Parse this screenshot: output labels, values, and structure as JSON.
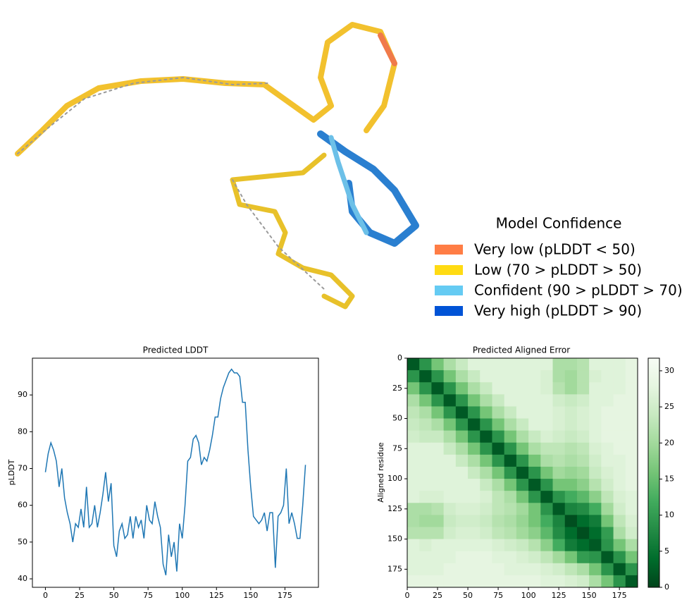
{
  "structure_legend": {
    "title": "Model Confidence",
    "items": [
      {
        "label": "Very low (pLDDT < 50)",
        "color": "#FF7D45"
      },
      {
        "label": "Low (70 > pLDDT > 50)",
        "color": "#FFDB13"
      },
      {
        "label": "Confident (90 > pLDDT > 70)",
        "color": "#65CBF3"
      },
      {
        "label": "Very high (pLDDT > 90)",
        "color": "#0053D6"
      }
    ]
  },
  "chart_data": [
    {
      "type": "line",
      "title": "Predicted LDDT",
      "ylabel": "pLDDT",
      "color": "#1f77b4",
      "x": [
        0,
        2,
        4,
        6,
        8,
        10,
        12,
        14,
        16,
        18,
        20,
        22,
        24,
        26,
        28,
        30,
        32,
        34,
        36,
        38,
        40,
        42,
        44,
        46,
        48,
        50,
        52,
        54,
        56,
        58,
        60,
        62,
        64,
        66,
        68,
        70,
        72,
        74,
        76,
        78,
        80,
        82,
        84,
        86,
        88,
        90,
        92,
        94,
        96,
        98,
        100,
        102,
        104,
        106,
        108,
        110,
        112,
        114,
        116,
        118,
        120,
        122,
        124,
        126,
        128,
        130,
        132,
        134,
        136,
        138,
        140,
        142,
        144,
        146,
        148,
        150,
        152,
        154,
        156,
        158,
        160,
        162,
        164,
        166,
        168,
        170,
        172,
        174,
        176,
        178,
        180,
        182,
        184,
        186,
        188,
        190
      ],
      "values": [
        69,
        74,
        77,
        75,
        72,
        65,
        70,
        62,
        58,
        55,
        50,
        55,
        54,
        59,
        54,
        65,
        54,
        55,
        60,
        54,
        58,
        63,
        69,
        61,
        66,
        49,
        46,
        53,
        55,
        51,
        52,
        57,
        51,
        57,
        54,
        56,
        51,
        60,
        56,
        55,
        61,
        57,
        54,
        44,
        41,
        52,
        46,
        50,
        42,
        55,
        51,
        60,
        72,
        73,
        78,
        79,
        77,
        71,
        73,
        72,
        75,
        79,
        84,
        84,
        89,
        92,
        94,
        96,
        97,
        96,
        96,
        95,
        88,
        88,
        75,
        65,
        57,
        56,
        55,
        56,
        58,
        53,
        58,
        58,
        43,
        57,
        58,
        60,
        70,
        55,
        58,
        55,
        51,
        51,
        60,
        71
      ],
      "xlim": [
        -9.5,
        199.5
      ],
      "xticks": [
        0,
        25,
        50,
        75,
        100,
        125,
        150,
        175
      ],
      "ylim": [
        37.7,
        100
      ],
      "yticks": [
        40,
        50,
        60,
        70,
        80,
        90
      ]
    },
    {
      "type": "heatmap",
      "title": "Predicted Aligned Error",
      "ylabel": "Aligned residue",
      "xlim": [
        0,
        190
      ],
      "ylim": [
        0,
        190
      ],
      "y_inverted": true,
      "xticks": [
        0,
        25,
        50,
        75,
        100,
        125,
        150,
        175
      ],
      "yticks": [
        0,
        25,
        50,
        75,
        100,
        125,
        150,
        175
      ],
      "clim": [
        0,
        31.75
      ],
      "cticks": [
        0,
        5,
        10,
        15,
        20,
        25,
        30
      ],
      "colorscale": [
        "#00441b",
        "#006d2c",
        "#238b45",
        "#41ab5d",
        "#74c476",
        "#a1d99b",
        "#c7e9c0",
        "#e5f5e0",
        "#f7fcf5"
      ],
      "z": [
        [
          2,
          9,
          16,
          21,
          24,
          27,
          27,
          27,
          27,
          27,
          27,
          27,
          21,
          21,
          22,
          27,
          27,
          27,
          28
        ],
        [
          9,
          2,
          9,
          16,
          21,
          24,
          27,
          27,
          27,
          27,
          27,
          26,
          21,
          20,
          22,
          26,
          27,
          27,
          28
        ],
        [
          16,
          9,
          2,
          9,
          16,
          21,
          24,
          27,
          27,
          27,
          27,
          26,
          22,
          20,
          22,
          27,
          27,
          27,
          28
        ],
        [
          21,
          16,
          9,
          2,
          9,
          16,
          21,
          24,
          27,
          27,
          27,
          27,
          25,
          24,
          25,
          27,
          27,
          28,
          28
        ],
        [
          23,
          21,
          16,
          9,
          2,
          9,
          16,
          21,
          24,
          27,
          27,
          27,
          26,
          25,
          26,
          27,
          28,
          28,
          28
        ],
        [
          24,
          23,
          21,
          16,
          9,
          2,
          9,
          16,
          21,
          24,
          27,
          27,
          26,
          25,
          26,
          27,
          28,
          28,
          28
        ],
        [
          25,
          24,
          24,
          21,
          16,
          9,
          2,
          9,
          16,
          21,
          24,
          26,
          25,
          24,
          25,
          27,
          28,
          28,
          28
        ],
        [
          27,
          27,
          27,
          24,
          21,
          16,
          9,
          2,
          9,
          16,
          21,
          23,
          23,
          22,
          23,
          26,
          27,
          28,
          28
        ],
        [
          27,
          27,
          27,
          27,
          24,
          21,
          16,
          9,
          2,
          9,
          16,
          21,
          22,
          21,
          22,
          25,
          27,
          27,
          28
        ],
        [
          27,
          27,
          27,
          27,
          27,
          24,
          21,
          16,
          9,
          2,
          9,
          16,
          20,
          19,
          20,
          24,
          26,
          27,
          28
        ],
        [
          27,
          27,
          27,
          27,
          27,
          27,
          24,
          21,
          16,
          9,
          2,
          9,
          16,
          16,
          18,
          22,
          25,
          27,
          28
        ],
        [
          27,
          26,
          26,
          27,
          27,
          27,
          26,
          23,
          21,
          16,
          9,
          2,
          9,
          12,
          14,
          18,
          23,
          26,
          27
        ],
        [
          21,
          21,
          22,
          25,
          26,
          26,
          25,
          23,
          22,
          20,
          16,
          9,
          2,
          7,
          8,
          12,
          20,
          25,
          27
        ],
        [
          21,
          20,
          20,
          24,
          25,
          25,
          24,
          22,
          21,
          19,
          16,
          12,
          7,
          1,
          4,
          6,
          16,
          23,
          26
        ],
        [
          22,
          22,
          22,
          25,
          26,
          26,
          25,
          23,
          22,
          20,
          18,
          14,
          8,
          4,
          1,
          4,
          10,
          21,
          25
        ],
        [
          27,
          26,
          27,
          27,
          27,
          27,
          27,
          26,
          25,
          24,
          22,
          18,
          12,
          6,
          4,
          2,
          9,
          16,
          21
        ],
        [
          27,
          27,
          27,
          27,
          28,
          28,
          28,
          27,
          27,
          26,
          25,
          23,
          20,
          16,
          10,
          9,
          2,
          9,
          16
        ],
        [
          27,
          27,
          27,
          28,
          28,
          28,
          28,
          28,
          27,
          27,
          27,
          26,
          25,
          23,
          21,
          16,
          9,
          2,
          9
        ],
        [
          28,
          28,
          28,
          28,
          28,
          28,
          28,
          28,
          28,
          28,
          28,
          27,
          27,
          26,
          25,
          21,
          16,
          9,
          2
        ]
      ]
    }
  ]
}
